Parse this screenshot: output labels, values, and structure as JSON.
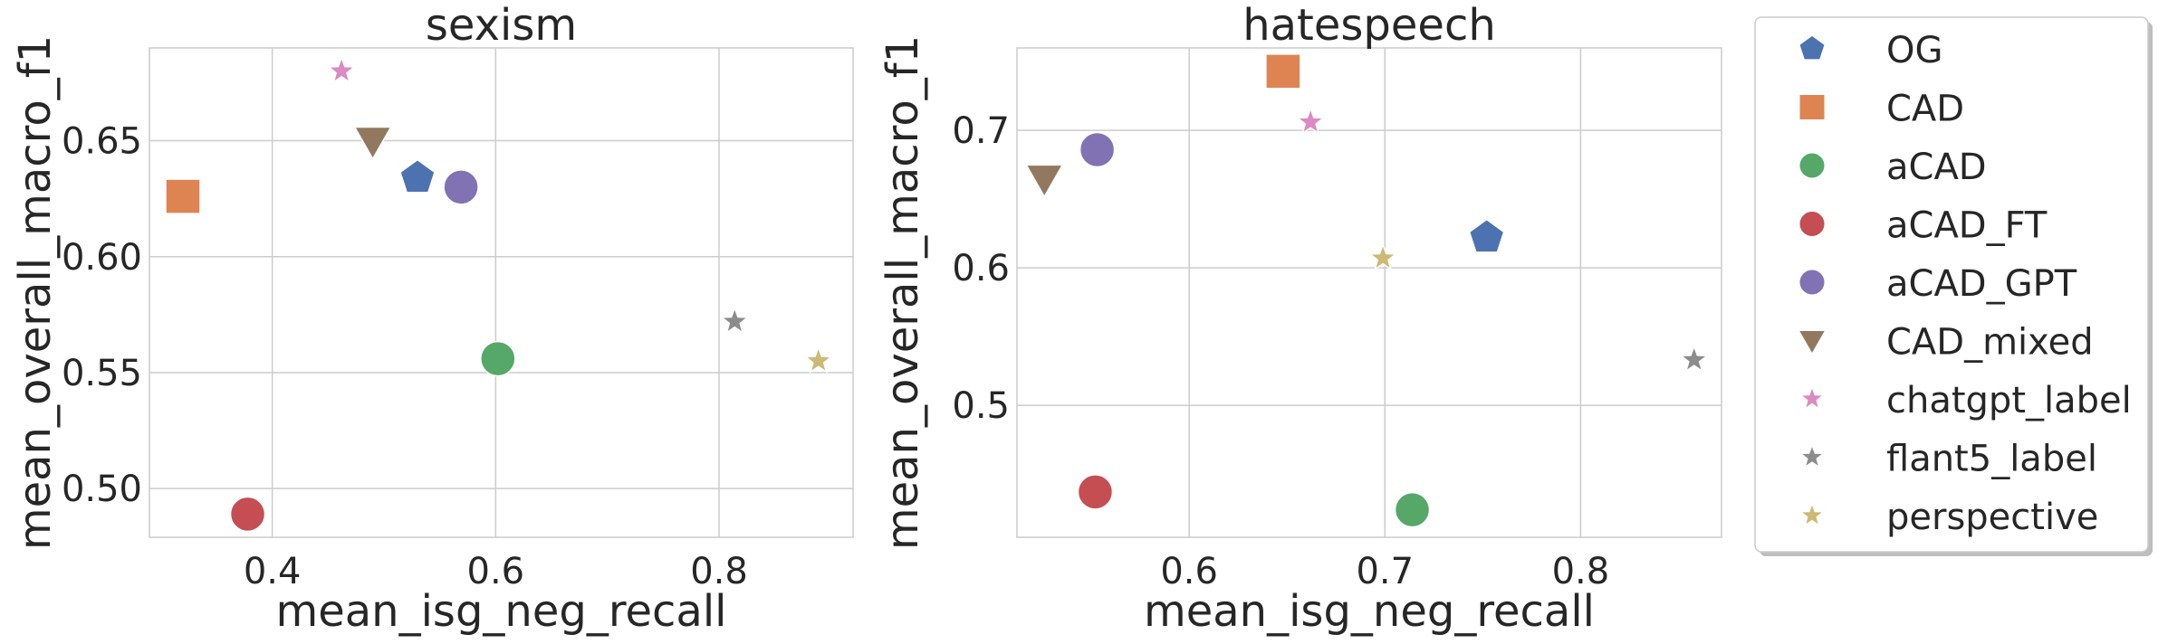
{
  "legend": {
    "items": [
      {
        "label": "OG",
        "color": "#4c72b0",
        "marker": "pentagon"
      },
      {
        "label": "CAD",
        "color": "#dd8452",
        "marker": "square"
      },
      {
        "label": "aCAD",
        "color": "#55a868",
        "marker": "circle"
      },
      {
        "label": "aCAD_FT",
        "color": "#c44e52",
        "marker": "circle"
      },
      {
        "label": "aCAD_GPT",
        "color": "#8172b3",
        "marker": "circle"
      },
      {
        "label": "CAD_mixed",
        "color": "#937860",
        "marker": "triangle-down"
      },
      {
        "label": "chatgpt_label",
        "color": "#da8bc3",
        "marker": "star"
      },
      {
        "label": "flant5_label",
        "color": "#8c8c8c",
        "marker": "star"
      },
      {
        "label": "perspective",
        "color": "#ccb974",
        "marker": "star"
      }
    ]
  },
  "chart_data": [
    {
      "type": "scatter",
      "title": "sexism",
      "xlabel": "mean_isg_neg_recall",
      "ylabel": "mean_overall_macro_f1",
      "xlim": [
        0.29,
        0.92
      ],
      "ylim": [
        0.479,
        0.69
      ],
      "xticks": [
        "0.4",
        "0.6",
        "0.8"
      ],
      "xtick_values": [
        0.4,
        0.6,
        0.8
      ],
      "yticks": [
        "0.50",
        "0.55",
        "0.60",
        "0.65"
      ],
      "ytick_values": [
        0.5,
        0.55,
        0.6,
        0.65
      ],
      "grid": true,
      "points": [
        {
          "series": "OG",
          "x": 0.53,
          "y": 0.634
        },
        {
          "series": "CAD",
          "x": 0.32,
          "y": 0.626
        },
        {
          "series": "aCAD",
          "x": 0.602,
          "y": 0.556
        },
        {
          "series": "aCAD_FT",
          "x": 0.378,
          "y": 0.489
        },
        {
          "series": "aCAD_GPT",
          "x": 0.569,
          "y": 0.63
        },
        {
          "series": "CAD_mixed",
          "x": 0.49,
          "y": 0.65
        },
        {
          "series": "chatgpt_label",
          "x": 0.462,
          "y": 0.68
        },
        {
          "series": "flant5_label",
          "x": 0.814,
          "y": 0.572
        },
        {
          "series": "perspective",
          "x": 0.889,
          "y": 0.555
        }
      ]
    },
    {
      "type": "scatter",
      "title": "hatespeech",
      "xlabel": "mean_isg_neg_recall",
      "ylabel": "mean_overall_macro_f1",
      "xlim": [
        0.512,
        0.872
      ],
      "ylim": [
        0.404,
        0.76
      ],
      "xticks": [
        "0.6",
        "0.7",
        "0.8"
      ],
      "xtick_values": [
        0.6,
        0.7,
        0.8
      ],
      "yticks": [
        "0.5",
        "0.6",
        "0.7"
      ],
      "ytick_values": [
        0.5,
        0.6,
        0.7
      ],
      "grid": true,
      "points": [
        {
          "series": "OG",
          "x": 0.752,
          "y": 0.622
        },
        {
          "series": "CAD",
          "x": 0.648,
          "y": 0.743
        },
        {
          "series": "aCAD",
          "x": 0.714,
          "y": 0.424
        },
        {
          "series": "aCAD_FT",
          "x": 0.552,
          "y": 0.437
        },
        {
          "series": "aCAD_GPT",
          "x": 0.553,
          "y": 0.686
        },
        {
          "series": "CAD_mixed",
          "x": 0.526,
          "y": 0.665
        },
        {
          "series": "chatgpt_label",
          "x": 0.662,
          "y": 0.706
        },
        {
          "series": "flant5_label",
          "x": 0.858,
          "y": 0.533
        },
        {
          "series": "perspective",
          "x": 0.699,
          "y": 0.607
        }
      ]
    }
  ]
}
